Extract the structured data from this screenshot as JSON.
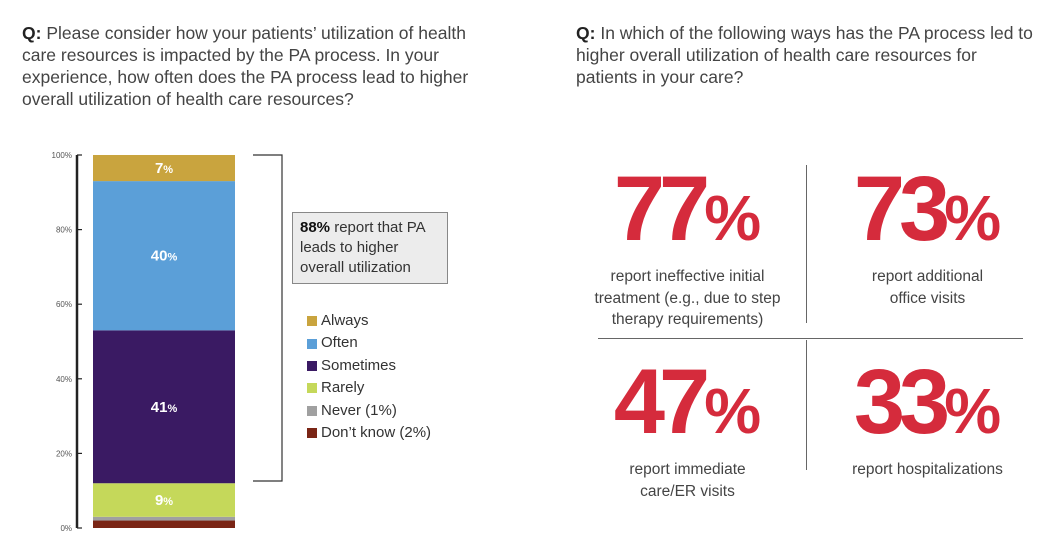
{
  "left_question": {
    "q": "Q:",
    "text": "Please consider how your patients’ utilization of health care resources is impacted by the PA process. In your experience, how often does the PA process lead to higher overall utilization of health care resources?"
  },
  "right_question": {
    "q": "Q:",
    "text": "In which of the following ways has the PA process led to higher overall utilization of health care resources for patients in your care?"
  },
  "chart_data": {
    "type": "bar",
    "stacked": true,
    "categories": [
      ""
    ],
    "ylim": [
      0,
      100
    ],
    "ytick_values": [
      0,
      20,
      40,
      60,
      80,
      100
    ],
    "ytick_labels": [
      "0%",
      "20%",
      "40%",
      "60%",
      "80%",
      "100%"
    ],
    "series": [
      {
        "name": "Don’t know (2%)",
        "value": 2,
        "color": "#7a2515",
        "label_num": "",
        "label_pct": ""
      },
      {
        "name": "Never (1%)",
        "value": 1,
        "color": "#a0a0a0",
        "label_num": "",
        "label_pct": ""
      },
      {
        "name": "Rarely",
        "value": 9,
        "color": "#c5d85a",
        "label_num": "9",
        "label_pct": "%",
        "label_color": "#333333"
      },
      {
        "name": "Sometimes",
        "value": 41,
        "color": "#3a1a63",
        "label_num": "41",
        "label_pct": "%",
        "label_color": "#ffffff"
      },
      {
        "name": "Often",
        "value": 40,
        "color": "#5b9fd8",
        "label_num": "40",
        "label_pct": "%",
        "label_color": "#ffffff"
      },
      {
        "name": "Always",
        "value": 7,
        "color": "#c9a43e",
        "label_num": "7",
        "label_pct": "%",
        "label_color": "#ffffff"
      }
    ],
    "legend_order": [
      "Always",
      "Often",
      "Sometimes",
      "Rarely",
      "Never (1%)",
      "Don’t know (2%)"
    ],
    "legend_colors": [
      "#c9a43e",
      "#5b9fd8",
      "#3a1a63",
      "#c5d85a",
      "#a0a0a0",
      "#7a2515"
    ],
    "callout": {
      "bold": "88%",
      "text": " report that PA leads to higher overall utilization"
    }
  },
  "stats": [
    {
      "value": "77",
      "symbol": "%",
      "desc_lines": [
        "report ineffective initial",
        "treatment (e.g., due to step",
        "therapy requirements)"
      ]
    },
    {
      "value": "73",
      "symbol": "%",
      "desc_lines": [
        "report additional",
        "office visits"
      ]
    },
    {
      "value": "47",
      "symbol": "%",
      "desc_lines": [
        "report immediate",
        "care/ER visits"
      ]
    },
    {
      "value": "33",
      "symbol": "%",
      "desc_lines": [
        "report hospitalizations"
      ]
    }
  ],
  "colors": {
    "accent_red": "#d52b3c"
  }
}
